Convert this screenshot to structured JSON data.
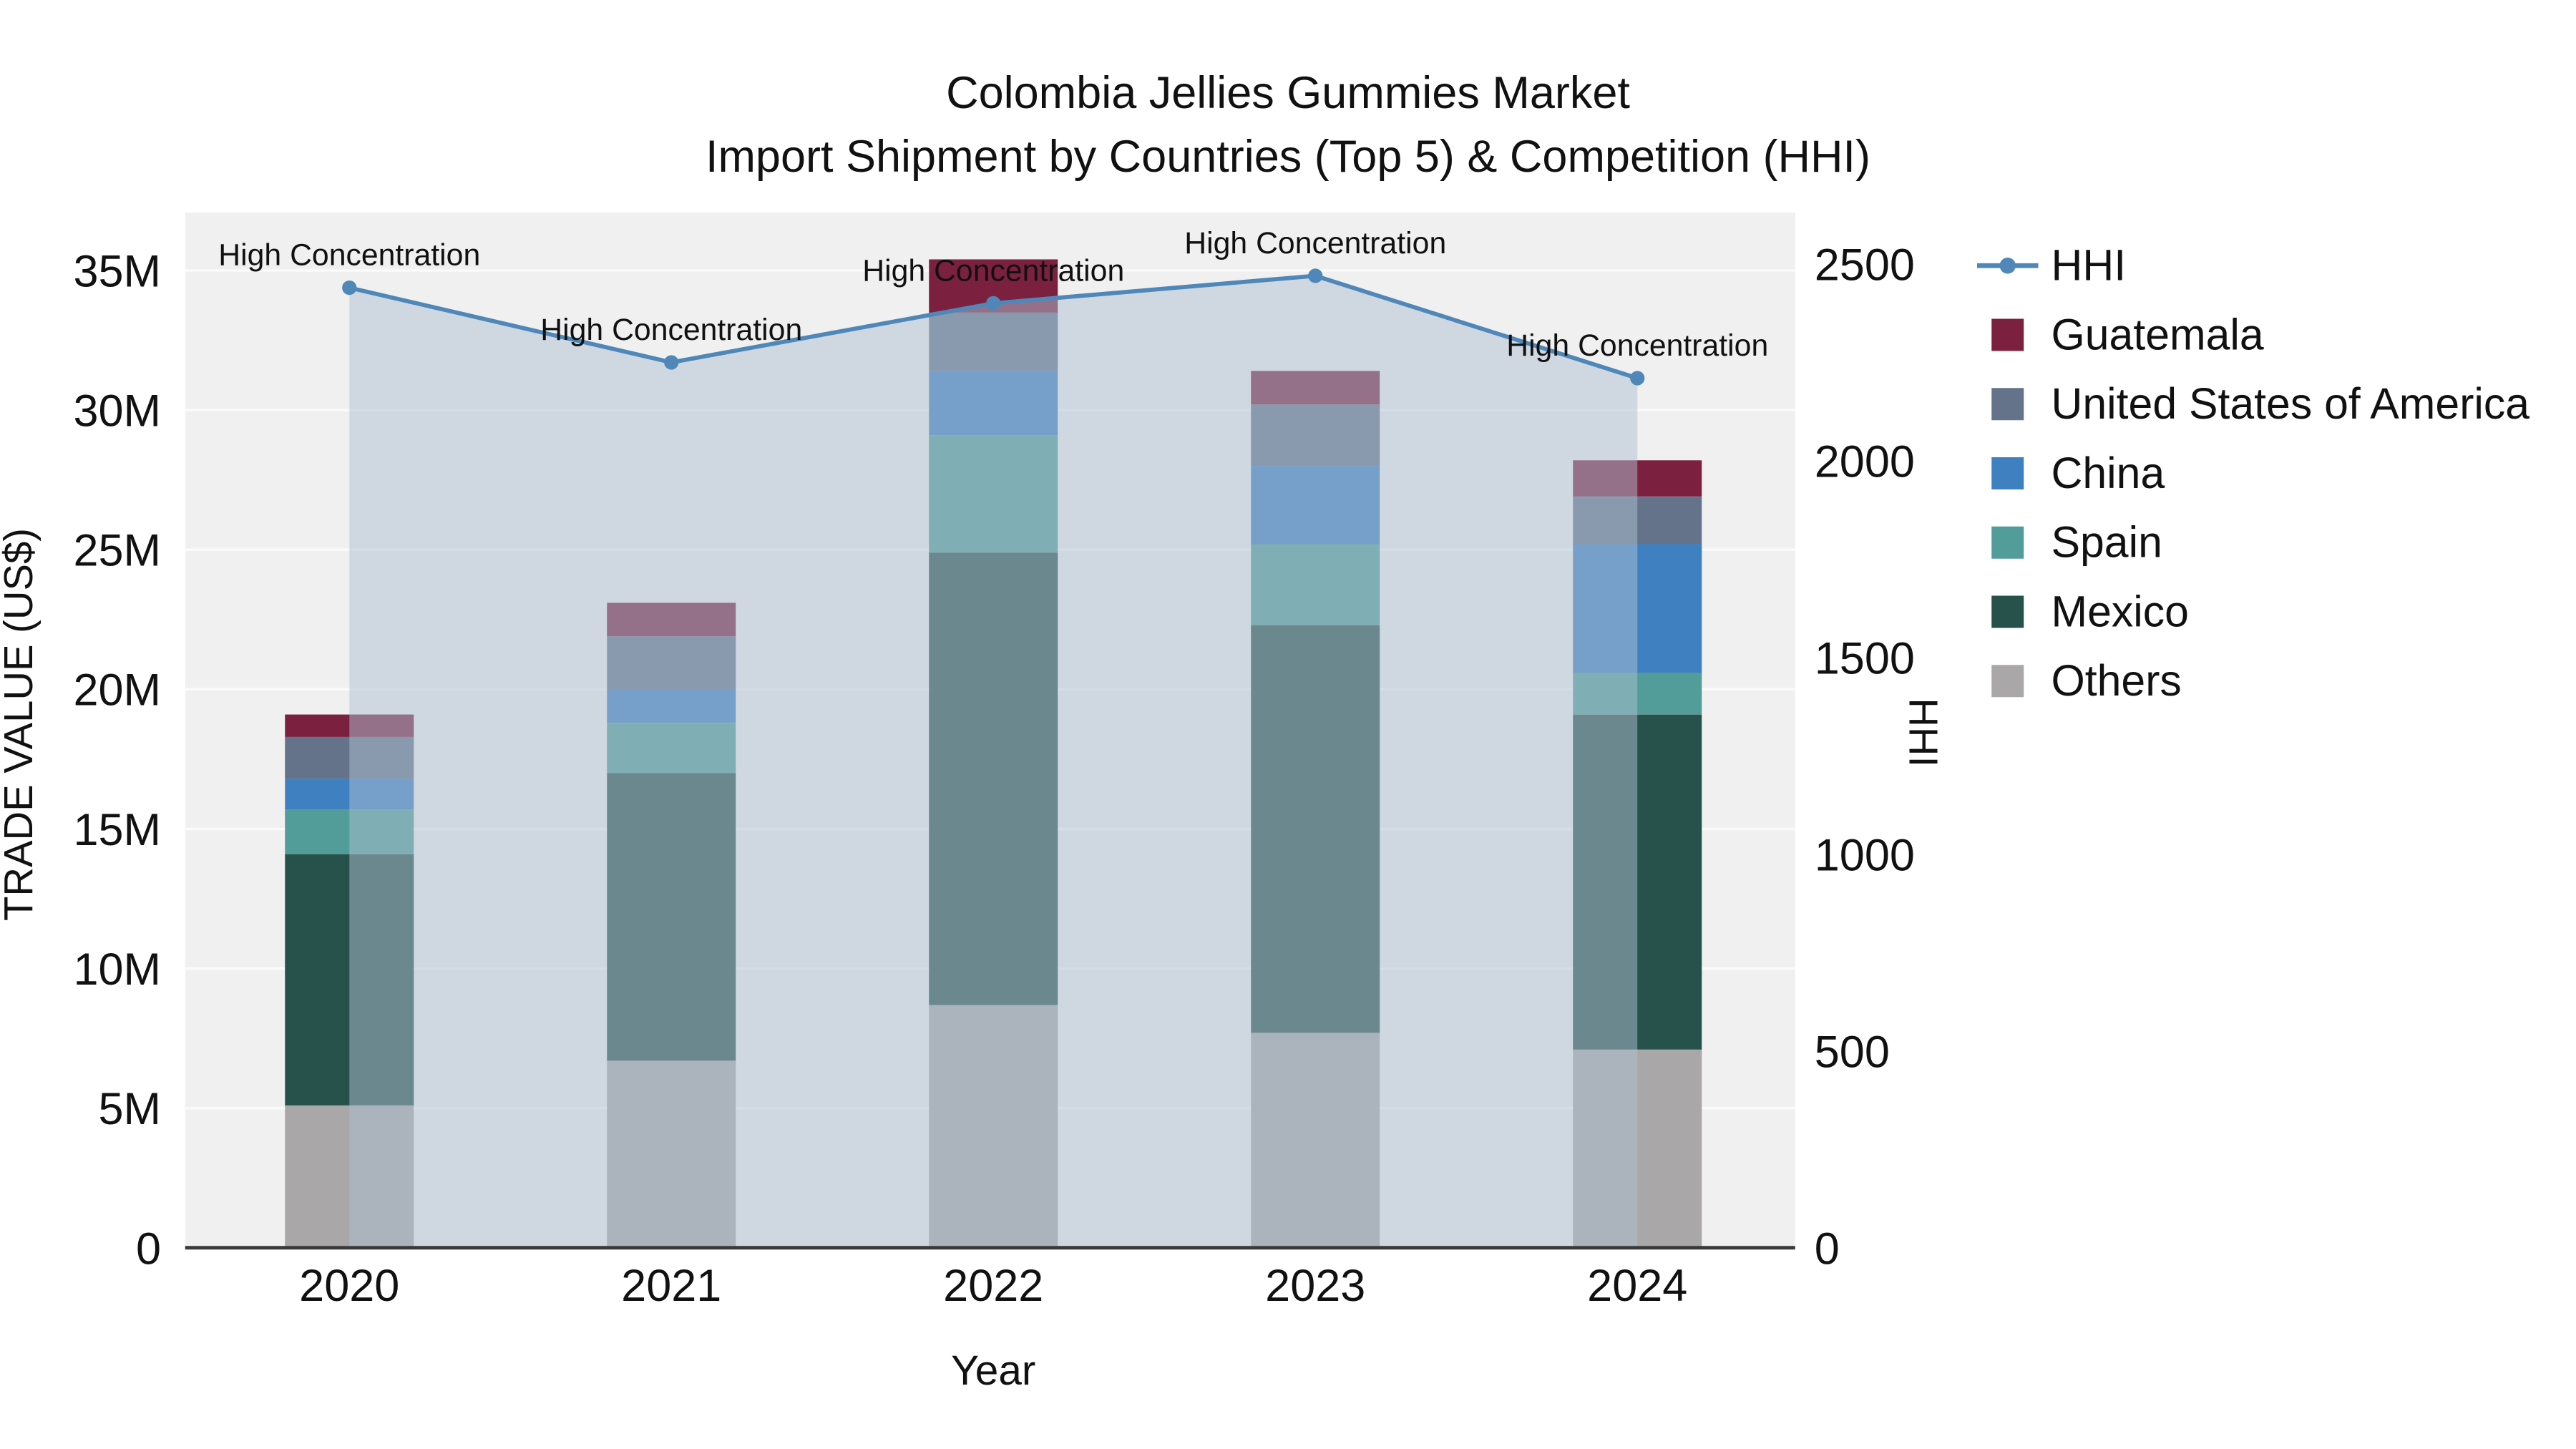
{
  "chart_data": {
    "type": "bar",
    "subtype": "stacked-bar-with-hhi-line",
    "title": "Colombia Jellies Gummies Market",
    "subtitle": "Import Shipment by Countries (Top 5) & Competition (HHI)",
    "xlabel": "Year",
    "ylabel_left": "TRADE VALUE (US$)",
    "ylabel_right": "HHI",
    "categories": [
      "2020",
      "2021",
      "2022",
      "2023",
      "2024"
    ],
    "bar_unit": "M US$",
    "stack_order_bottom_to_top": [
      "Others",
      "Mexico",
      "Spain",
      "China",
      "United States of America",
      "Guatemala"
    ],
    "series": [
      {
        "name": "Others",
        "color": "#a9a7a7",
        "values_musd": [
          5.1,
          6.7,
          8.7,
          7.7,
          7.1
        ]
      },
      {
        "name": "Mexico",
        "color": "#27514b",
        "values_musd": [
          9.0,
          10.3,
          16.2,
          14.6,
          12.0
        ]
      },
      {
        "name": "Spain",
        "color": "#529c99",
        "values_musd": [
          1.6,
          1.8,
          4.2,
          2.9,
          1.5
        ]
      },
      {
        "name": "China",
        "color": "#3f80c0",
        "values_musd": [
          1.1,
          1.2,
          2.3,
          2.8,
          4.6
        ]
      },
      {
        "name": "United States of America",
        "color": "#64738a",
        "values_musd": [
          1.5,
          1.9,
          2.1,
          2.2,
          1.7
        ]
      },
      {
        "name": "Guatemala",
        "color": "#7c2040",
        "values_musd": [
          0.8,
          1.2,
          1.9,
          1.2,
          1.3
        ]
      }
    ],
    "bar_totals_musd": [
      19.1,
      23.1,
      35.4,
      31.4,
      28.2
    ],
    "line_series": {
      "name": "HHI",
      "color": "#4f88b8",
      "area_fill": "#aebfd2",
      "values": [
        2440,
        2250,
        2400,
        2470,
        2210
      ]
    },
    "annotations": [
      {
        "x": "2020",
        "text": "High Concentration"
      },
      {
        "x": "2021",
        "text": "High Concentration"
      },
      {
        "x": "2022",
        "text": "High Concentration"
      },
      {
        "x": "2023",
        "text": "High Concentration"
      },
      {
        "x": "2024",
        "text": "High Concentration"
      }
    ],
    "y_left_axis": {
      "tick_labels": [
        "0",
        "5M",
        "10M",
        "15M",
        "20M",
        "25M",
        "30M",
        "35M"
      ],
      "tick_values_musd": [
        0,
        5,
        10,
        15,
        20,
        25,
        30,
        35
      ],
      "max_musd": 35
    },
    "y_right_axis": {
      "tick_labels": [
        "0",
        "500",
        "1000",
        "1500",
        "2000",
        "2500"
      ],
      "tick_values": [
        0,
        500,
        1000,
        1500,
        2000,
        2500
      ],
      "max": 2500
    },
    "legend_order": [
      "HHI",
      "Guatemala",
      "United States of America",
      "China",
      "Spain",
      "Mexico",
      "Others"
    ],
    "legend_position": "right",
    "grid": "horizontal",
    "plot_background": "#f0f0f0",
    "text_color": "#111111"
  }
}
